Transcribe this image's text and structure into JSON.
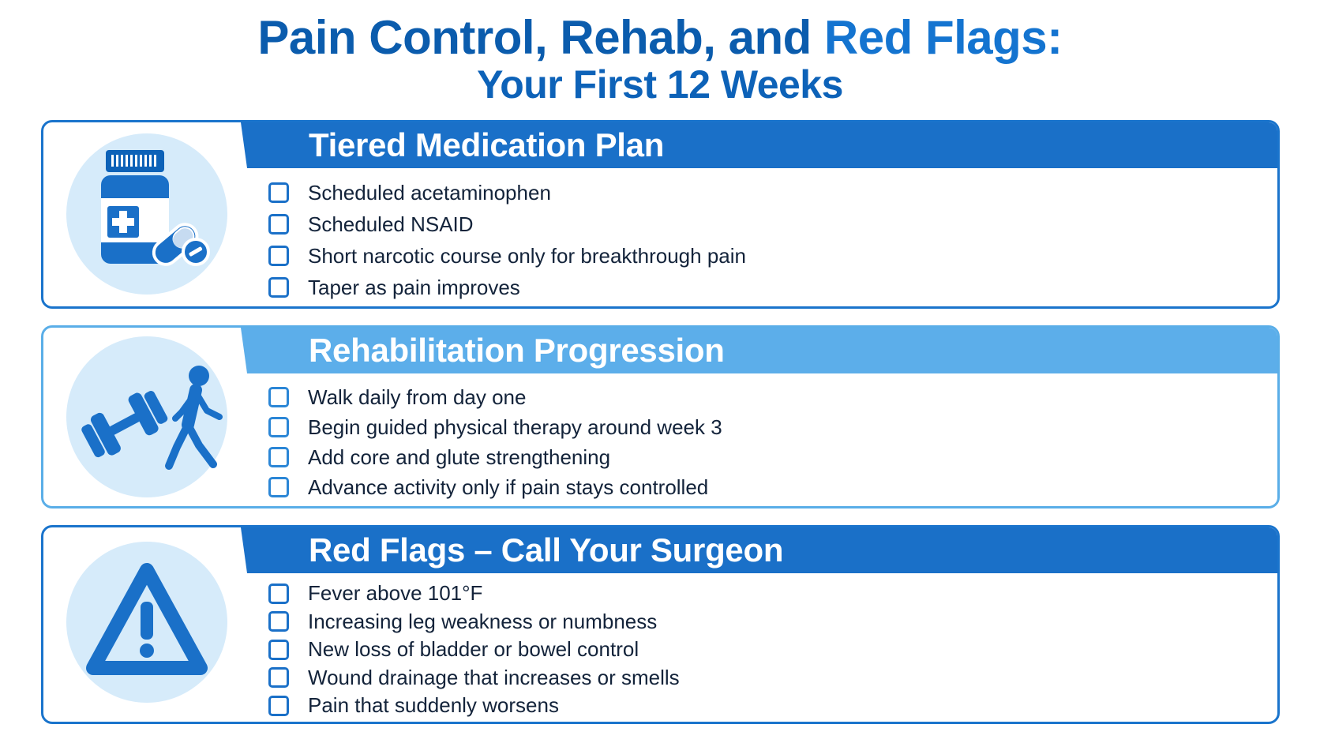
{
  "title": {
    "line1_part1": "Pain Control, Rehab, and ",
    "line1_part2": "Red Flags:",
    "line2": "Your First 12 Weeks"
  },
  "colors": {
    "primary": "#1a70c8",
    "light": "#5caeea",
    "icon_bg": "#d6ebfa",
    "text": "#13233a"
  },
  "sections": [
    {
      "heading": "Tiered Medication Plan",
      "icon": "medicine-bottle-icon",
      "items": [
        "Scheduled acetaminophen",
        "Scheduled NSAID",
        "Short narcotic course only for breakthrough pain",
        "Taper as pain improves"
      ]
    },
    {
      "heading": "Rehabilitation Progression",
      "icon": "dumbbell-walking-person-icon",
      "items": [
        "Walk daily from day one",
        "Begin guided physical therapy around week 3",
        "Add core and glute strengthening",
        "Advance activity only if pain stays controlled"
      ]
    },
    {
      "heading": "Red Flags – Call Your Surgeon",
      "icon": "warning-triangle-icon",
      "items": [
        "Fever above 101°F",
        "Increasing leg weakness or numbness",
        "New loss of bladder or bowel control",
        "Wound drainage that increases or smells",
        "Pain that suddenly worsens"
      ]
    }
  ]
}
